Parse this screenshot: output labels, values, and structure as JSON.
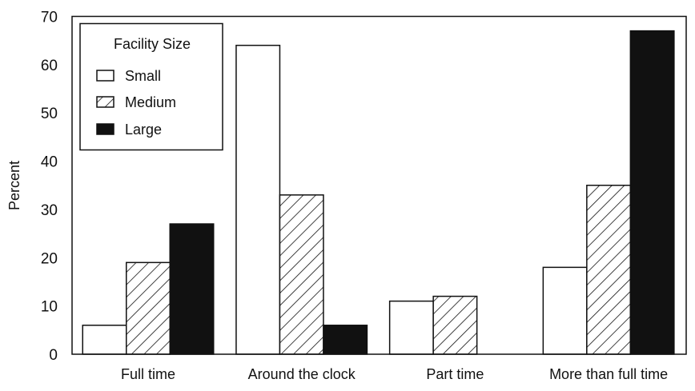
{
  "chart_data": {
    "type": "bar",
    "title": "",
    "xlabel": "",
    "ylabel": "Percent",
    "ylim": [
      0,
      70
    ],
    "yticks": [
      0,
      10,
      20,
      30,
      40,
      50,
      60,
      70
    ],
    "categories": [
      "Full time",
      "Around the clock",
      "Part time",
      "More than full time"
    ],
    "legend": {
      "title": "Facility Size",
      "placement": "top-left"
    },
    "series": [
      {
        "name": "Small",
        "pattern": "empty",
        "values": [
          6,
          64,
          11,
          18
        ]
      },
      {
        "name": "Medium",
        "pattern": "hatched",
        "values": [
          19,
          33,
          12,
          35
        ]
      },
      {
        "name": "Large",
        "pattern": "solid",
        "values": [
          27,
          6,
          0,
          67
        ]
      }
    ],
    "colors": {
      "stroke": "#111111",
      "fill_large": "#111111",
      "background": "#ffffff"
    }
  }
}
